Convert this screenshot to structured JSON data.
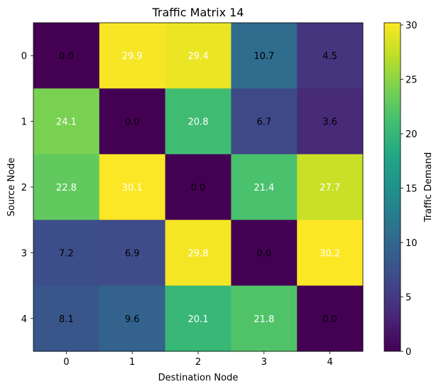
{
  "chart_data": {
    "type": "heatmap",
    "title": "Traffic Matrix 14",
    "xlabel": "Destination Node",
    "ylabel": "Source Node",
    "x_categories": [
      "0",
      "1",
      "2",
      "3",
      "4"
    ],
    "y_categories": [
      "0",
      "1",
      "2",
      "3",
      "4"
    ],
    "values": [
      [
        0.0,
        29.9,
        29.4,
        10.7,
        4.5
      ],
      [
        24.1,
        0.0,
        20.8,
        6.7,
        3.6
      ],
      [
        22.8,
        30.1,
        0.0,
        21.4,
        27.7
      ],
      [
        7.2,
        6.9,
        29.8,
        0.0,
        30.2
      ],
      [
        8.1,
        9.6,
        20.1,
        21.8,
        0.0
      ]
    ],
    "cell_labels": [
      [
        "0.0",
        "29.9",
        "29.4",
        "10.7",
        "4.5"
      ],
      [
        "24.1",
        "0.0",
        "20.8",
        "6.7",
        "3.6"
      ],
      [
        "22.8",
        "30.1",
        "0.0",
        "21.4",
        "27.7"
      ],
      [
        "7.2",
        "6.9",
        "29.8",
        "0.0",
        "30.2"
      ],
      [
        "8.1",
        "9.6",
        "20.1",
        "21.8",
        "0.0"
      ]
    ],
    "colormap": "viridis",
    "vmin": 0.0,
    "vmax": 30.2,
    "colorbar": {
      "label": "Traffic Demand",
      "ticks": [
        0,
        5,
        10,
        15,
        20,
        25,
        30
      ],
      "tick_labels": [
        "0",
        "5",
        "10",
        "15",
        "20",
        "25",
        "30"
      ]
    }
  }
}
